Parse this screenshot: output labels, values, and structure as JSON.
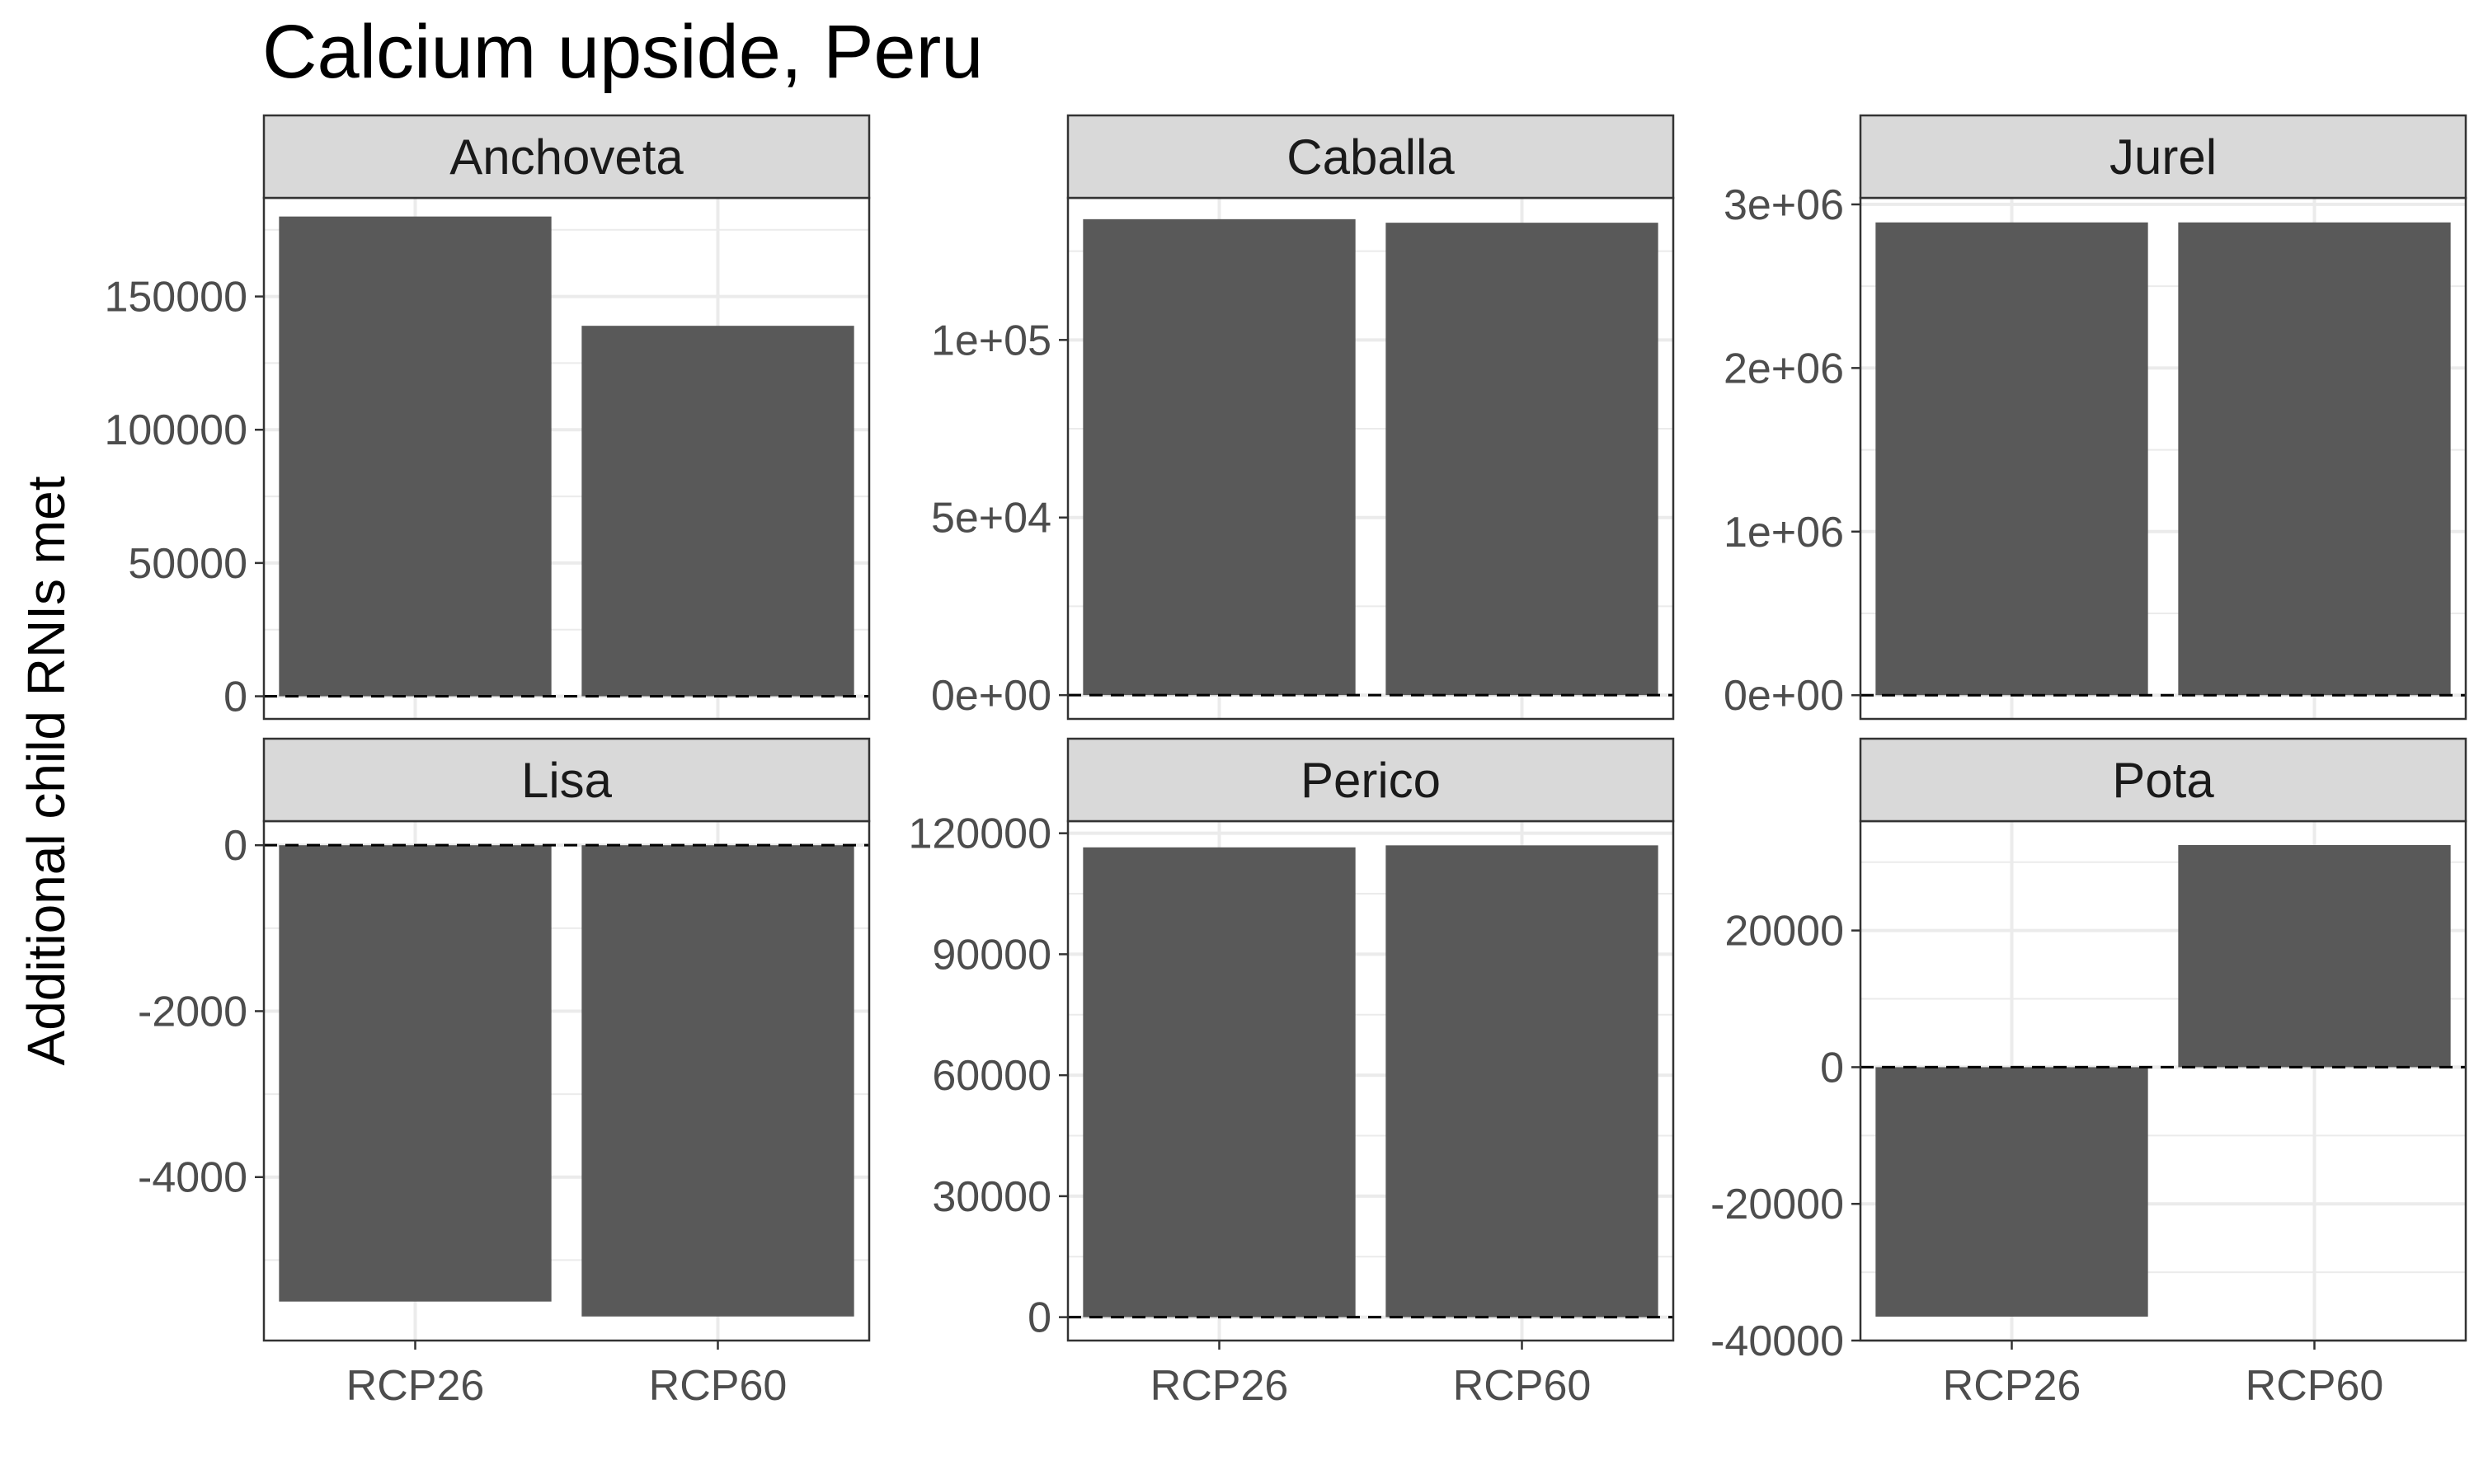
{
  "chart_data": {
    "type": "bar",
    "title": "Calcium upside, Peru",
    "ylabel": "Additional child RNIs met",
    "xlabel": "",
    "categories": [
      "RCP26",
      "RCP60"
    ],
    "colors": {
      "bar": "#595959",
      "strip": "#d9d9d9",
      "grid": "#ebebeb",
      "border": "#333333",
      "zero_line": "#000000"
    },
    "grid": true,
    "facets": [
      {
        "name": "Anchoveta",
        "values": [
          180000,
          139000
        ],
        "ylim": [
          -8500,
          187000
        ],
        "ticks": [
          0,
          50000,
          100000,
          150000
        ],
        "tick_labels": [
          "0",
          "50000",
          "100000",
          "150000"
        ]
      },
      {
        "name": "Caballa",
        "values": [
          134000,
          133000
        ],
        "ylim": [
          -6700,
          140000
        ],
        "ticks": [
          0,
          50000,
          100000
        ],
        "tick_labels": [
          "0e+00",
          "5e+04",
          "1e+05"
        ]
      },
      {
        "name": "Jurel",
        "values": [
          2890000,
          2890000
        ],
        "ylim": [
          -145000,
          3040000
        ],
        "ticks": [
          0,
          1000000,
          2000000,
          3000000
        ],
        "tick_labels": [
          "0e+00",
          "1e+06",
          "2e+06",
          "3e+06"
        ]
      },
      {
        "name": "Lisa",
        "values": [
          -5500,
          -5680
        ],
        "ylim": [
          -5970,
          290
        ],
        "ticks": [
          -4000,
          -2000,
          0
        ],
        "tick_labels": [
          "-4000",
          "-2000",
          "0"
        ]
      },
      {
        "name": "Perico",
        "values": [
          116500,
          117000
        ],
        "ylim": [
          -5800,
          123000
        ],
        "ticks": [
          0,
          30000,
          60000,
          90000,
          120000
        ],
        "tick_labels": [
          "0",
          "30000",
          "60000",
          "90000",
          "120000"
        ]
      },
      {
        "name": "Pota",
        "values": [
          -36500,
          32500
        ],
        "ylim": [
          -40000,
          36000
        ],
        "ticks": [
          -40000,
          -20000,
          0,
          20000
        ],
        "tick_labels": [
          "-40000",
          "-20000",
          "0",
          "20000"
        ]
      }
    ]
  }
}
